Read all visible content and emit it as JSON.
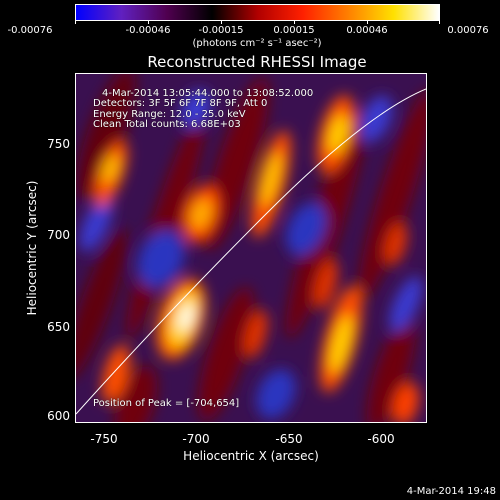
{
  "colorbar": {
    "tick_labels": [
      "-0.00076",
      "-0.00046",
      "-0.00015",
      "0.00015",
      "0.00046",
      "0.00076"
    ],
    "units": "(photons cm⁻² s⁻¹ asec⁻²)",
    "colors": [
      "#0000ff",
      "#6020c0",
      "#500050",
      "#000000",
      "#b00000",
      "#ff2000",
      "#ff8000",
      "#ffe000",
      "#ffffff"
    ]
  },
  "title": "Reconstructed RHESSI Image",
  "info": {
    "time_range": "4-Mar-2014 13:05:44.000 to 13:08:52.000",
    "detectors": "Detectors: 3F 5F 6F 7F 8F 9F, Att 0",
    "energy": "Energy Range: 12.0 - 25.0 keV",
    "clean": "Clean    Total counts: 6.68E+03",
    "peak": "Position of Peak = [-704,654]"
  },
  "axes": {
    "xlabel": "Heliocentric X (arcsec)",
    "ylabel": "Heliocentric Y (arcsec)",
    "xticks": [
      "-750",
      "-700",
      "-650",
      "-600"
    ],
    "yticks": [
      "750",
      "700",
      "650",
      "600"
    ]
  },
  "timestamp": "4-Mar-2014 19:48"
}
